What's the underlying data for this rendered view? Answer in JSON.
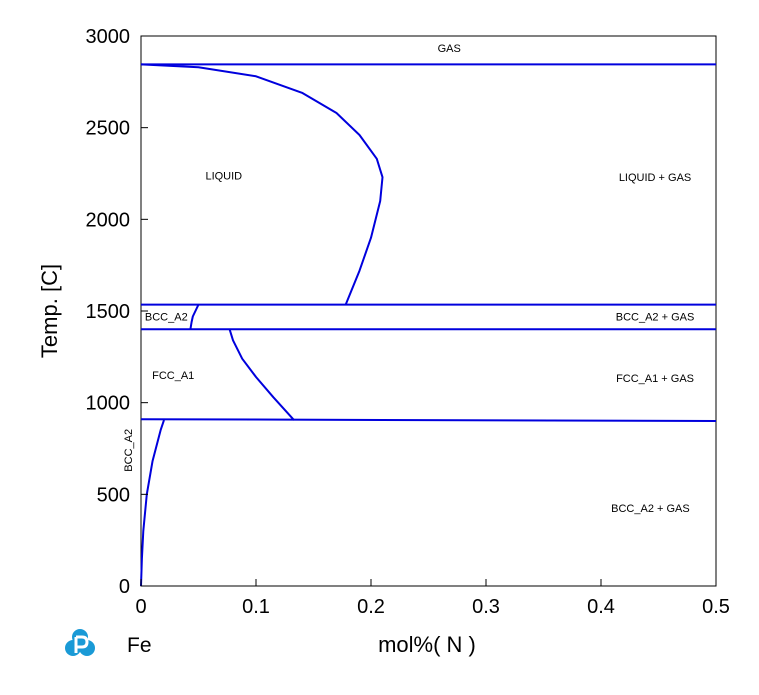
{
  "chart_data": {
    "type": "line",
    "title": "",
    "xlabel": "mol%( N )",
    "ylabel": "Temp.  [C]",
    "element_label": "Fe",
    "xlim": [
      0,
      0.5
    ],
    "ylim": [
      0,
      3000
    ],
    "x_ticks": [
      0,
      0.1,
      0.2,
      0.3,
      0.4,
      0.5
    ],
    "x_tick_labels": [
      "0",
      "0.1",
      "0.2",
      "0.3",
      "0.4",
      "0.5"
    ],
    "y_ticks": [
      0,
      500,
      1000,
      1500,
      2000,
      2500,
      3000
    ],
    "y_tick_labels": [
      "0",
      "500",
      "1000",
      "1500",
      "2000",
      "2500",
      "3000"
    ],
    "grid": false,
    "line_color": "#0000dd",
    "series": [
      {
        "points": [
          [
            0,
            2845
          ],
          [
            0.5,
            2845
          ]
        ]
      },
      {
        "points": [
          [
            0,
            2845
          ],
          [
            0.05,
            2830
          ],
          [
            0.1,
            2780
          ],
          [
            0.14,
            2690
          ],
          [
            0.17,
            2580
          ],
          [
            0.19,
            2460
          ],
          [
            0.205,
            2330
          ],
          [
            0.21,
            2230
          ],
          [
            0.208,
            2100
          ],
          [
            0.2,
            1900
          ],
          [
            0.19,
            1720
          ],
          [
            0.178,
            1535
          ]
        ]
      },
      {
        "points": [
          [
            0,
            1535
          ],
          [
            0.5,
            1535
          ]
        ]
      },
      {
        "points": [
          [
            0,
            1400
          ],
          [
            0.5,
            1400
          ]
        ]
      },
      {
        "points": [
          [
            0.05,
            1535
          ],
          [
            0.045,
            1470
          ],
          [
            0.044,
            1440
          ],
          [
            0.043,
            1400
          ]
        ]
      },
      {
        "points": [
          [
            0.077,
            1400
          ],
          [
            0.08,
            1340
          ],
          [
            0.088,
            1240
          ],
          [
            0.1,
            1140
          ],
          [
            0.115,
            1030
          ],
          [
            0.133,
            905
          ]
        ]
      },
      {
        "points": [
          [
            0,
            910
          ],
          [
            0.5,
            900
          ]
        ]
      },
      {
        "points": [
          [
            0,
            0
          ],
          [
            0.0008,
            150
          ],
          [
            0.002,
            300
          ],
          [
            0.005,
            500
          ],
          [
            0.01,
            680
          ],
          [
            0.017,
            850
          ],
          [
            0.02,
            905
          ]
        ]
      }
    ],
    "region_labels": [
      {
        "text": "GAS",
        "x": 0.268,
        "y": 2935
      },
      {
        "text": "LIQUID",
        "x": 0.072,
        "y": 2240
      },
      {
        "text": "LIQUID + GAS",
        "x": 0.447,
        "y": 2230
      },
      {
        "text": "BCC_A2",
        "x": 0.022,
        "y": 1470
      },
      {
        "text": "BCC_A2 + GAS",
        "x": 0.447,
        "y": 1470
      },
      {
        "text": "FCC_A1",
        "x": 0.028,
        "y": 1150
      },
      {
        "text": "FCC_A1 + GAS",
        "x": 0.447,
        "y": 1135
      },
      {
        "text": "BCC_A2",
        "x": -0.008,
        "y": 740,
        "rotated": true
      },
      {
        "text": "BCC_A2 + GAS",
        "x": 0.443,
        "y": 425
      }
    ]
  }
}
